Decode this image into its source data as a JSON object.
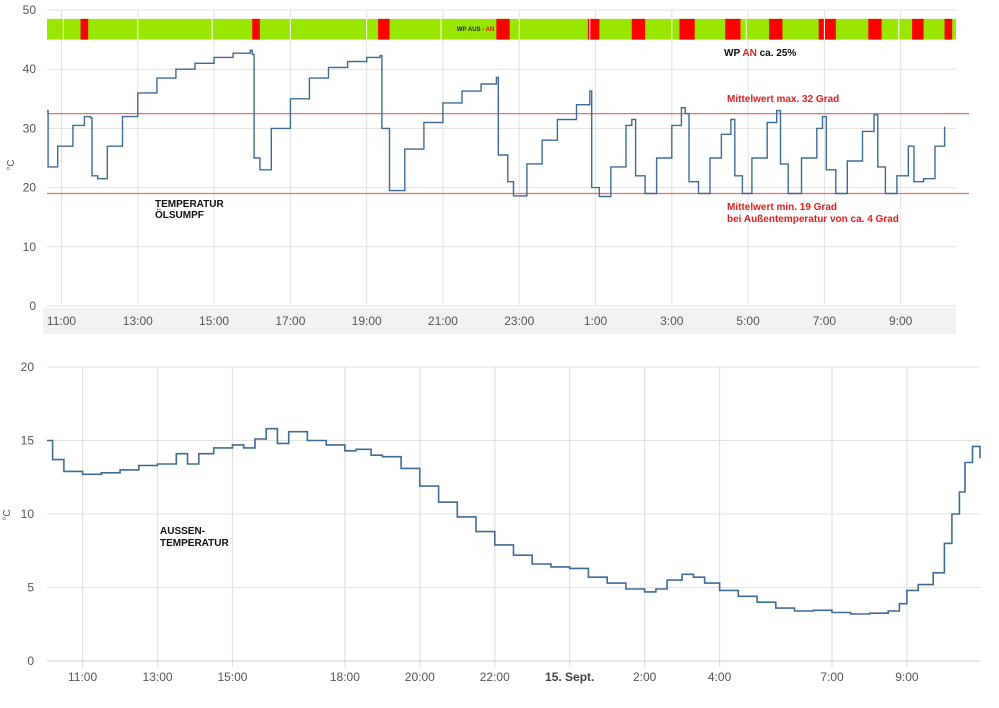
{
  "colors": {
    "line": "#3f6b97",
    "mean_line": "#f26b6b",
    "on": "#ff0000",
    "off": "#99e600",
    "annot_red": "#e02020",
    "annot_black": "#111111",
    "grid": "#e2e2e2"
  },
  "chart_data": [
    {
      "type": "line",
      "ylabel": "°C",
      "ylim": [
        0,
        50
      ],
      "yticks": [
        "0",
        "10",
        "20",
        "30",
        "40",
        "50"
      ],
      "xticks": [
        "11:00",
        "13:00",
        "15:00",
        "17:00",
        "19:00",
        "21:00",
        "23:00",
        "1:00",
        "3:00",
        "5:00",
        "7:00",
        "9:00"
      ],
      "x_hours": [
        10.62,
        34.45
      ],
      "mean_lines": [
        {
          "y": 32.5,
          "label": "Mittelwert max. 32 Grad"
        },
        {
          "y": 19.0,
          "label_lines": [
            "Mittelwert min. 19 Grad",
            "bei Außentemperatur von ca. 4 Grad"
          ]
        }
      ],
      "series_label": [
        "TEMPERATUR",
        "ÖLSUMPF"
      ],
      "band": {
        "on_intervals": [
          [
            11.5,
            11.7
          ],
          [
            16.0,
            16.2
          ],
          [
            19.3,
            19.6
          ],
          [
            22.4,
            22.75
          ],
          [
            24.8,
            25.1
          ],
          [
            25.95,
            26.3
          ],
          [
            27.2,
            27.6
          ],
          [
            28.4,
            28.8
          ],
          [
            29.55,
            29.9
          ],
          [
            30.85,
            31.3
          ],
          [
            32.15,
            32.5
          ],
          [
            33.3,
            33.6
          ],
          [
            34.15,
            34.35
          ]
        ],
        "label_off": "WP AUS",
        "label_sep": " - ",
        "label_on": "AN",
        "summary_prefix": "WP ",
        "summary_on": "AN",
        "summary_suffix": " ca. 25%"
      },
      "points": [
        [
          10.62,
          33
        ],
        [
          10.65,
          23.5
        ],
        [
          10.9,
          27
        ],
        [
          11.3,
          30.5
        ],
        [
          11.6,
          32
        ],
        [
          11.75,
          31.8
        ],
        [
          11.8,
          22
        ],
        [
          11.95,
          21.5
        ],
        [
          12.2,
          27
        ],
        [
          12.6,
          32
        ],
        [
          13.0,
          36
        ],
        [
          13.5,
          38.5
        ],
        [
          14.0,
          40
        ],
        [
          14.5,
          41
        ],
        [
          15.0,
          42
        ],
        [
          15.5,
          42.7
        ],
        [
          15.95,
          43.2
        ],
        [
          16.0,
          42.5
        ],
        [
          16.05,
          25
        ],
        [
          16.2,
          23
        ],
        [
          16.5,
          30
        ],
        [
          17.0,
          35
        ],
        [
          17.5,
          38.5
        ],
        [
          18.0,
          40.3
        ],
        [
          18.5,
          41.3
        ],
        [
          19.0,
          42
        ],
        [
          19.35,
          42.3
        ],
        [
          19.4,
          30
        ],
        [
          19.6,
          19.5
        ],
        [
          20.0,
          26.5
        ],
        [
          20.5,
          31
        ],
        [
          21.0,
          34.3
        ],
        [
          21.5,
          36.3
        ],
        [
          22.0,
          37.5
        ],
        [
          22.4,
          38.6
        ],
        [
          22.45,
          25.5
        ],
        [
          22.7,
          21
        ],
        [
          22.85,
          18.6
        ],
        [
          23.2,
          24
        ],
        [
          23.6,
          28
        ],
        [
          24.0,
          31.5
        ],
        [
          24.5,
          34
        ],
        [
          24.85,
          36.3
        ],
        [
          24.9,
          20
        ],
        [
          25.1,
          18.5
        ],
        [
          25.4,
          23.5
        ],
        [
          25.8,
          30.5
        ],
        [
          25.95,
          31.5
        ],
        [
          26.05,
          22
        ],
        [
          26.3,
          19
        ],
        [
          26.6,
          25
        ],
        [
          27.0,
          30.5
        ],
        [
          27.25,
          33.5
        ],
        [
          27.35,
          32.5
        ],
        [
          27.45,
          21
        ],
        [
          27.7,
          19
        ],
        [
          28.0,
          25
        ],
        [
          28.3,
          29
        ],
        [
          28.55,
          31.5
        ],
        [
          28.65,
          22
        ],
        [
          28.85,
          19
        ],
        [
          29.1,
          25
        ],
        [
          29.5,
          31
        ],
        [
          29.75,
          33
        ],
        [
          29.85,
          24
        ],
        [
          30.05,
          19
        ],
        [
          30.4,
          25
        ],
        [
          30.8,
          30
        ],
        [
          30.95,
          32
        ],
        [
          31.05,
          23
        ],
        [
          31.3,
          19
        ],
        [
          31.6,
          24.5
        ],
        [
          32.0,
          29.5
        ],
        [
          32.3,
          32.3
        ],
        [
          32.4,
          23.5
        ],
        [
          32.6,
          19
        ],
        [
          32.9,
          22
        ],
        [
          33.2,
          27
        ],
        [
          33.35,
          21
        ],
        [
          33.6,
          21.5
        ],
        [
          33.9,
          27
        ],
        [
          34.15,
          30.3
        ]
      ]
    },
    {
      "type": "line",
      "ylabel": "°C",
      "ylim": [
        0,
        20
      ],
      "yticks": [
        "0",
        "5",
        "10",
        "15",
        "20"
      ],
      "xticks": [
        "11:00",
        "13:00",
        "15:00",
        "18:00",
        "20:00",
        "22:00",
        "15. Sept.",
        "2:00",
        "4:00",
        "7:00",
        "9:00"
      ],
      "series_label": [
        "AUSSEN-",
        "TEMPERATUR"
      ],
      "points": [
        [
          10.05,
          15
        ],
        [
          10.2,
          13.7
        ],
        [
          10.5,
          12.9
        ],
        [
          11.0,
          12.7
        ],
        [
          11.5,
          12.8
        ],
        [
          12.0,
          13.0
        ],
        [
          12.5,
          13.3
        ],
        [
          13.0,
          13.4
        ],
        [
          13.5,
          14.1
        ],
        [
          13.8,
          13.4
        ],
        [
          14.1,
          14.1
        ],
        [
          14.5,
          14.5
        ],
        [
          15.0,
          14.7
        ],
        [
          15.3,
          14.5
        ],
        [
          15.6,
          15.1
        ],
        [
          15.9,
          15.8
        ],
        [
          16.2,
          14.8
        ],
        [
          16.5,
          15.6
        ],
        [
          17.0,
          15.0
        ],
        [
          17.5,
          14.7
        ],
        [
          18.0,
          14.3
        ],
        [
          18.3,
          14.4
        ],
        [
          18.7,
          14.0
        ],
        [
          19.0,
          13.9
        ],
        [
          19.5,
          13.1
        ],
        [
          20.0,
          11.9
        ],
        [
          20.5,
          10.8
        ],
        [
          21.0,
          9.8
        ],
        [
          21.5,
          8.8
        ],
        [
          22.0,
          7.9
        ],
        [
          22.5,
          7.2
        ],
        [
          23.0,
          6.6
        ],
        [
          23.5,
          6.4
        ],
        [
          24.0,
          6.3
        ],
        [
          24.5,
          5.7
        ],
        [
          25.0,
          5.3
        ],
        [
          25.5,
          4.9
        ],
        [
          26.0,
          4.7
        ],
        [
          26.3,
          4.9
        ],
        [
          26.6,
          5.5
        ],
        [
          27.0,
          5.9
        ],
        [
          27.3,
          5.7
        ],
        [
          27.6,
          5.3
        ],
        [
          28.0,
          4.8
        ],
        [
          28.5,
          4.4
        ],
        [
          29.0,
          4.0
        ],
        [
          29.5,
          3.6
        ],
        [
          30.0,
          3.4
        ],
        [
          30.5,
          3.45
        ],
        [
          31.0,
          3.3
        ],
        [
          31.5,
          3.2
        ],
        [
          32.0,
          3.25
        ],
        [
          32.5,
          3.4
        ],
        [
          32.8,
          3.9
        ],
        [
          33.0,
          4.8
        ],
        [
          33.3,
          5.2
        ],
        [
          33.7,
          6.0
        ],
        [
          34.0,
          8.0
        ],
        [
          34.2,
          10.0
        ],
        [
          34.4,
          11.5
        ],
        [
          34.55,
          13.5
        ],
        [
          34.75,
          14.6
        ],
        [
          34.95,
          13.8
        ]
      ],
      "x_hours": [
        10.05,
        34.95
      ]
    }
  ]
}
